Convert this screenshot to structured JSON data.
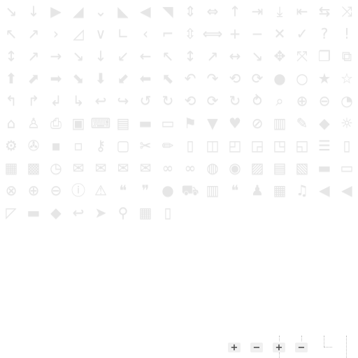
{
  "icon_rows": [
    [
      "arrow-e-se",
      "arrow-s",
      "arrow-e",
      "arrow-sw-small",
      "chevron-down",
      "arrow-se-small",
      "arrow-w-small",
      "arrow-ne-small",
      "arrow-ns",
      "arrow-ew",
      "arrow-n",
      "arrow-bar-right",
      "arrow-bar-down",
      "arrow-bar-left",
      "arrows-swap",
      "shuffle"
    ],
    [
      "arrow-curve-nw",
      "arrow-curve-ne",
      "triangle-e",
      "arrow-corner",
      "chevron-down-big",
      "corner-down-left",
      "chevron-left",
      "corner-up-right",
      "arrows-updown",
      "arrows-leftright",
      "plus",
      "minus",
      "close",
      "check",
      "question",
      "exclamation"
    ],
    [
      "arrow-thin-ns",
      "arrow-thin-ne",
      "arrow-thin-e",
      "arrow-thin-se",
      "arrow-thin-s",
      "arrow-thin-sw",
      "arrow-thin-w",
      "arrow-thin-nw",
      "arrow-thin-ns-2",
      "arrow-thin-ne-2",
      "arrow-thin-ew",
      "arrow-thin-se-2",
      "move",
      "expand",
      "windows",
      "external-link"
    ],
    [
      "arrow-bold-n",
      "arrow-bold-ne",
      "arrow-bold-e",
      "arrow-bold-se",
      "arrow-bold-s",
      "arrow-bold-sw",
      "arrow-bold-w",
      "arrow-bold-nw",
      "undo",
      "redo",
      "refresh-double",
      "refresh-spin",
      "record",
      "circle",
      "star",
      "star-outline"
    ],
    [
      "turn-left",
      "turn-right",
      "turn-down-left",
      "turn-down-right",
      "turn-back-left",
      "turn-back-right",
      "rotate-left",
      "rotate-right",
      "undo-big",
      "refresh-small",
      "refresh-circle",
      "refresh-arrows",
      "zoom",
      "zoom-in",
      "zoom-out",
      "rss"
    ],
    [
      "home",
      "person",
      "print",
      "save",
      "keyboard",
      "book",
      "folder",
      "folder-open",
      "flag",
      "bookmark",
      "heart",
      "cancel",
      "trash",
      "pin",
      "tag",
      "lightbulb"
    ],
    [
      "gear",
      "wrench",
      "lock",
      "unlock",
      "key",
      "clipboard",
      "scissors",
      "pencil",
      "document",
      "documents",
      "note",
      "copy",
      "copy-2",
      "copy-3",
      "list-doc",
      "doc-blank"
    ],
    [
      "calendar-day",
      "calendar",
      "clock",
      "mail",
      "mail-2",
      "mail-3",
      "mail-open",
      "link",
      "link-2",
      "globe",
      "globe-2",
      "contact-card",
      "newspaper",
      "picture",
      "briefcase",
      "comment-box"
    ],
    [
      "circle-close",
      "circle-plus",
      "circle-minus",
      "circle-info",
      "warning",
      "speech",
      "speech-2",
      "speech-3",
      "cart",
      "chart",
      "comments",
      "people",
      "film",
      "music",
      "volume-off",
      "volume-on"
    ],
    [
      "edit-box",
      "tray",
      "stack",
      "reply",
      "send",
      "paperclip",
      "table",
      "phone"
    ]
  ],
  "controls": {
    "plus_label": "+",
    "minus_label": "−",
    "plus_dotted_label": "+",
    "minus_dotted_label": "−"
  },
  "colors": {
    "icon_fill": "#e6e6e6",
    "control_bg": "#f0f0f0",
    "control_text": "#4a4a4a"
  }
}
